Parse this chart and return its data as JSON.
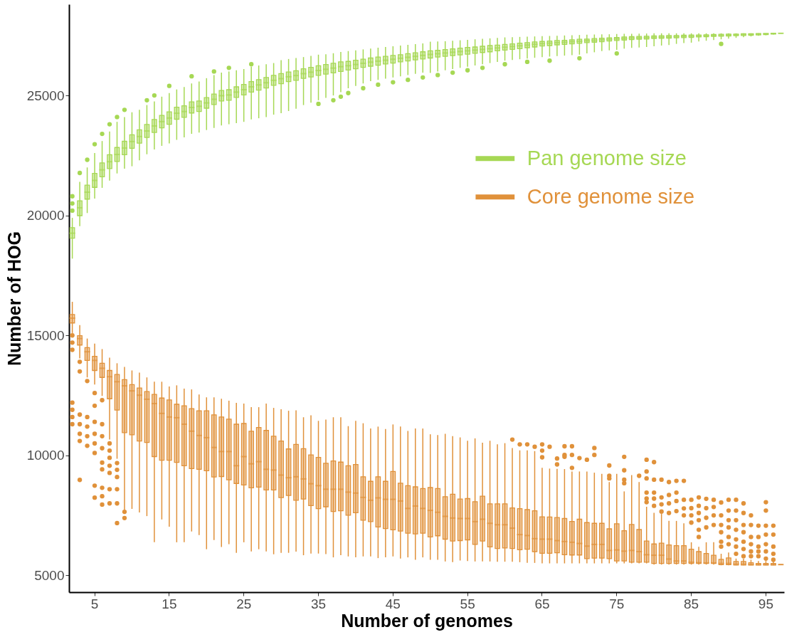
{
  "chart_data": {
    "type": "box",
    "xlabel": "Number of genomes",
    "ylabel": "Number of HOG",
    "ylim": [
      4300,
      28800
    ],
    "yticks": [
      5000,
      10000,
      15000,
      20000,
      25000
    ],
    "legend": "top right",
    "categories": [
      null,
      null,
      null,
      "5",
      null,
      null,
      null,
      null,
      null,
      null,
      null,
      null,
      null,
      "15",
      null,
      null,
      null,
      null,
      null,
      null,
      null,
      null,
      null,
      "25",
      null,
      null,
      null,
      null,
      null,
      null,
      null,
      null,
      null,
      "35",
      null,
      null,
      null,
      null,
      null,
      null,
      null,
      null,
      null,
      "45",
      null,
      null,
      null,
      null,
      null,
      null,
      null,
      null,
      null,
      "55",
      null,
      null,
      null,
      null,
      null,
      null,
      null,
      null,
      null,
      "65",
      null,
      null,
      null,
      null,
      null,
      null,
      null,
      null,
      null,
      "75",
      null,
      null,
      null,
      null,
      null,
      null,
      null,
      null,
      null,
      "85",
      null,
      null,
      null,
      null,
      null,
      null,
      null,
      null,
      null,
      "95",
      null,
      null
    ],
    "series": [
      {
        "name": "Pan genome size",
        "color": "#a6d854",
        "boxes": [
          {
            "low": 18200,
            "q1": 19050,
            "median": 19260,
            "q3": 19490,
            "high": 19900,
            "outliers": [
              20200,
              20500,
              20800
            ]
          },
          {
            "low": 19550,
            "q1": 19990,
            "median": 20320,
            "q3": 20610,
            "high": 21400,
            "outliers": [
              21770
            ]
          },
          {
            "low": 20100,
            "q1": 20680,
            "median": 20970,
            "q3": 21260,
            "high": 22000,
            "outliers": [
              22320
            ]
          },
          {
            "low": 20700,
            "q1": 21170,
            "median": 21460,
            "q3": 21750,
            "high": 22600,
            "outliers": [
              22970
            ]
          },
          {
            "low": 21150,
            "q1": 21610,
            "median": 21900,
            "q3": 22190,
            "high": 23100,
            "outliers": [
              23400
            ]
          },
          {
            "low": 21450,
            "q1": 21950,
            "median": 22240,
            "q3": 22530,
            "high": 23500,
            "outliers": [
              23800
            ]
          },
          {
            "low": 21750,
            "q1": 22250,
            "median": 22540,
            "q3": 22830,
            "high": 23900,
            "outliers": [
              24100
            ]
          },
          {
            "low": 21950,
            "q1": 22530,
            "median": 22810,
            "q3": 23090,
            "high": 24100,
            "outliers": [
              24400
            ]
          },
          {
            "low": 22050,
            "q1": 22800,
            "median": 23080,
            "q3": 23360,
            "high": 24300
          },
          {
            "low": 22300,
            "q1": 23010,
            "median": 23290,
            "q3": 23570,
            "high": 24400
          },
          {
            "low": 22550,
            "q1": 23250,
            "median": 23520,
            "q3": 23790,
            "high": 24600,
            "outliers": [
              24800
            ]
          },
          {
            "low": 22750,
            "q1": 23460,
            "median": 23730,
            "q3": 24000,
            "high": 24750,
            "outliers": [
              25000
            ]
          },
          {
            "low": 22900,
            "q1": 23650,
            "median": 23910,
            "q3": 24170,
            "high": 24950
          },
          {
            "low": 23000,
            "q1": 23800,
            "median": 24060,
            "q3": 24320,
            "high": 25100,
            "outliers": [
              25400
            ]
          },
          {
            "low": 23150,
            "q1": 24010,
            "median": 24260,
            "q3": 24510,
            "high": 25250
          },
          {
            "low": 23250,
            "q1": 24090,
            "median": 24330,
            "q3": 24570,
            "high": 25350
          },
          {
            "low": 23400,
            "q1": 24270,
            "median": 24500,
            "q3": 24730,
            "high": 25500,
            "outliers": [
              25800
            ]
          },
          {
            "low": 23450,
            "q1": 24330,
            "median": 24550,
            "q3": 24770,
            "high": 25580
          },
          {
            "low": 23560,
            "q1": 24470,
            "median": 24690,
            "q3": 24910,
            "high": 25720
          },
          {
            "low": 23650,
            "q1": 24620,
            "median": 24840,
            "q3": 25060,
            "high": 25850,
            "outliers": [
              26000
            ]
          },
          {
            "low": 23750,
            "q1": 24770,
            "median": 24990,
            "q3": 25210,
            "high": 25950
          },
          {
            "low": 23800,
            "q1": 24800,
            "median": 25020,
            "q3": 25240,
            "high": 26000,
            "outliers": [
              26150
            ]
          },
          {
            "low": 23850,
            "q1": 24920,
            "median": 25140,
            "q3": 25360,
            "high": 26050
          },
          {
            "low": 23900,
            "q1": 25020,
            "median": 25240,
            "q3": 25460,
            "high": 26100
          },
          {
            "low": 24000,
            "q1": 25140,
            "median": 25360,
            "q3": 25580,
            "high": 26200,
            "outliers": [
              26300
            ]
          },
          {
            "low": 24050,
            "q1": 25220,
            "median": 25440,
            "q3": 25660,
            "high": 26250
          },
          {
            "low": 24100,
            "q1": 25310,
            "median": 25530,
            "q3": 25750,
            "high": 26300
          },
          {
            "low": 24200,
            "q1": 25420,
            "median": 25630,
            "q3": 25840,
            "high": 26350
          },
          {
            "low": 24260,
            "q1": 25490,
            "median": 25700,
            "q3": 25910,
            "high": 26470
          },
          {
            "low": 24350,
            "q1": 25580,
            "median": 25780,
            "q3": 25980,
            "high": 26520
          },
          {
            "low": 24450,
            "q1": 25630,
            "median": 25830,
            "q3": 26030,
            "high": 26560
          },
          {
            "low": 24600,
            "q1": 25710,
            "median": 25910,
            "q3": 26110,
            "high": 26600
          },
          {
            "low": 24700,
            "q1": 25770,
            "median": 25970,
            "q3": 26170,
            "high": 26650
          },
          {
            "low": 24800,
            "q1": 25840,
            "median": 26040,
            "q3": 26240,
            "high": 26700,
            "outliers": [
              24650
            ]
          },
          {
            "low": 24900,
            "q1": 25890,
            "median": 26090,
            "q3": 26290,
            "high": 26720
          },
          {
            "low": 25000,
            "q1": 25940,
            "median": 26140,
            "q3": 26340,
            "high": 26760,
            "outliers": [
              24800
            ]
          },
          {
            "low": 25140,
            "q1": 26000,
            "median": 26200,
            "q3": 26400,
            "high": 26810,
            "outliers": [
              24950
            ]
          },
          {
            "low": 25300,
            "q1": 26060,
            "median": 26240,
            "q3": 26420,
            "high": 26850,
            "outliers": [
              25100
            ]
          },
          {
            "low": 25400,
            "q1": 26110,
            "median": 26290,
            "q3": 26470,
            "high": 26880
          },
          {
            "low": 25500,
            "q1": 26170,
            "median": 26340,
            "q3": 26510,
            "high": 26920,
            "outliers": [
              25300
            ]
          },
          {
            "low": 25600,
            "q1": 26220,
            "median": 26390,
            "q3": 26560,
            "high": 26950
          },
          {
            "low": 25650,
            "q1": 26260,
            "median": 26430,
            "q3": 26600,
            "high": 26990,
            "outliers": [
              25450
            ]
          },
          {
            "low": 25700,
            "q1": 26310,
            "median": 26470,
            "q3": 26630,
            "high": 27020
          },
          {
            "low": 25750,
            "q1": 26350,
            "median": 26510,
            "q3": 26670,
            "high": 27050,
            "outliers": [
              25550
            ]
          },
          {
            "low": 25800,
            "q1": 26400,
            "median": 26550,
            "q3": 26700,
            "high": 27080
          },
          {
            "low": 25850,
            "q1": 26440,
            "median": 26590,
            "q3": 26740,
            "high": 27110,
            "outliers": [
              25650
            ]
          },
          {
            "low": 25900,
            "q1": 26480,
            "median": 26630,
            "q3": 26780,
            "high": 27140
          },
          {
            "low": 25950,
            "q1": 26520,
            "median": 26670,
            "q3": 26820,
            "high": 27170,
            "outliers": [
              25750
            ]
          },
          {
            "low": 25940,
            "q1": 26560,
            "median": 26710,
            "q3": 26860,
            "high": 27240
          },
          {
            "low": 26000,
            "q1": 26600,
            "median": 26740,
            "q3": 26880,
            "high": 27250,
            "outliers": [
              25850
            ]
          },
          {
            "low": 26050,
            "q1": 26630,
            "median": 26770,
            "q3": 26910,
            "high": 27260
          },
          {
            "low": 26100,
            "q1": 26660,
            "median": 26800,
            "q3": 26940,
            "high": 27280,
            "outliers": [
              25950
            ]
          },
          {
            "low": 26150,
            "q1": 26690,
            "median": 26830,
            "q3": 26970,
            "high": 27300
          },
          {
            "low": 26200,
            "q1": 26720,
            "median": 26860,
            "q3": 27000,
            "high": 27320,
            "outliers": [
              26050
            ]
          },
          {
            "low": 26250,
            "q1": 26760,
            "median": 26890,
            "q3": 27020,
            "high": 27340
          },
          {
            "low": 26300,
            "q1": 26790,
            "median": 26920,
            "q3": 27050,
            "high": 27360,
            "outliers": [
              26150
            ]
          },
          {
            "low": 26350,
            "q1": 26820,
            "median": 26950,
            "q3": 27080,
            "high": 27380
          },
          {
            "low": 26400,
            "q1": 26860,
            "median": 26980,
            "q3": 27100,
            "high": 27400
          },
          {
            "low": 26450,
            "q1": 26890,
            "median": 27010,
            "q3": 27130,
            "high": 27420,
            "outliers": [
              26300
            ]
          },
          {
            "low": 26480,
            "q1": 26920,
            "median": 27040,
            "q3": 27150,
            "high": 27430
          },
          {
            "low": 26510,
            "q1": 26950,
            "median": 27070,
            "q3": 27180,
            "high": 27440
          },
          {
            "low": 26540,
            "q1": 26990,
            "median": 27100,
            "q3": 27200,
            "high": 27450,
            "outliers": [
              26400
            ]
          },
          {
            "low": 26570,
            "q1": 27020,
            "median": 27130,
            "q3": 27230,
            "high": 27460
          },
          {
            "low": 26600,
            "q1": 27060,
            "median": 27160,
            "q3": 27250,
            "high": 27470
          },
          {
            "low": 26620,
            "q1": 27080,
            "median": 27180,
            "q3": 27270,
            "high": 27480,
            "outliers": [
              26450
            ]
          },
          {
            "low": 26640,
            "q1": 27110,
            "median": 27200,
            "q3": 27290,
            "high": 27490
          },
          {
            "low": 26660,
            "q1": 27130,
            "median": 27220,
            "q3": 27300,
            "high": 27500
          },
          {
            "low": 26680,
            "q1": 27150,
            "median": 27240,
            "q3": 27320,
            "high": 27510
          },
          {
            "low": 26700,
            "q1": 27170,
            "median": 27260,
            "q3": 27340,
            "high": 27520,
            "outliers": [
              26550
            ]
          },
          {
            "low": 26750,
            "q1": 27200,
            "median": 27280,
            "q3": 27350,
            "high": 27530
          },
          {
            "low": 26800,
            "q1": 27220,
            "median": 27300,
            "q3": 27370,
            "high": 27540
          },
          {
            "low": 26850,
            "q1": 27240,
            "median": 27320,
            "q3": 27390,
            "high": 27550
          },
          {
            "low": 26880,
            "q1": 27270,
            "median": 27340,
            "q3": 27400,
            "high": 27550
          },
          {
            "low": 26900,
            "q1": 27290,
            "median": 27360,
            "q3": 27420,
            "high": 27560,
            "outliers": [
              26750
            ]
          },
          {
            "low": 26950,
            "q1": 27310,
            "median": 27380,
            "q3": 27440,
            "high": 27570
          },
          {
            "low": 26980,
            "q1": 27330,
            "median": 27390,
            "q3": 27450,
            "high": 27570
          },
          {
            "low": 27000,
            "q1": 27340,
            "median": 27400,
            "q3": 27460,
            "high": 27580
          },
          {
            "low": 27020,
            "q1": 27350,
            "median": 27410,
            "q3": 27470,
            "high": 27580
          },
          {
            "low": 27050,
            "q1": 27370,
            "median": 27420,
            "q3": 27480,
            "high": 27590
          },
          {
            "low": 27080,
            "q1": 27380,
            "median": 27430,
            "q3": 27490,
            "high": 27590
          },
          {
            "low": 27100,
            "q1": 27390,
            "median": 27440,
            "q3": 27500,
            "high": 27590
          },
          {
            "low": 27150,
            "q1": 27400,
            "median": 27450,
            "q3": 27500,
            "high": 27590
          },
          {
            "low": 27180,
            "q1": 27410,
            "median": 27460,
            "q3": 27510,
            "high": 27590
          },
          {
            "low": 27200,
            "q1": 27420,
            "median": 27470,
            "q3": 27520,
            "high": 27590
          },
          {
            "low": 27250,
            "q1": 27440,
            "median": 27480,
            "q3": 27520,
            "high": 27590
          },
          {
            "low": 27280,
            "q1": 27450,
            "median": 27490,
            "q3": 27530,
            "high": 27590
          },
          {
            "low": 27310,
            "q1": 27460,
            "median": 27500,
            "q3": 27540,
            "high": 27590
          },
          {
            "low": 27340,
            "q1": 27470,
            "median": 27510,
            "q3": 27550,
            "high": 27590,
            "outliers": [
              27150
            ]
          },
          {
            "low": 27370,
            "q1": 27480,
            "median": 27520,
            "q3": 27560,
            "high": 27590
          },
          {
            "low": 27400,
            "q1": 27490,
            "median": 27530,
            "q3": 27560,
            "high": 27590
          },
          {
            "low": 27430,
            "q1": 27500,
            "median": 27540,
            "q3": 27570,
            "high": 27590
          },
          {
            "low": 27460,
            "q1": 27510,
            "median": 27550,
            "q3": 27570,
            "high": 27590
          },
          {
            "low": 27490,
            "q1": 27520,
            "median": 27560,
            "q3": 27580,
            "high": 27590
          },
          {
            "low": 27510,
            "q1": 27540,
            "median": 27570,
            "q3": 27580,
            "high": 27590
          },
          {
            "low": 27540,
            "q1": 27560,
            "median": 27580,
            "q3": 27590,
            "high": 27590
          },
          {
            "low": 27590,
            "q1": 27590,
            "median": 27590,
            "q3": 27590,
            "high": 27590
          }
        ]
      },
      {
        "name": "Core genome size",
        "color": "#e0913a",
        "boxes": [
          {
            "low": 15100,
            "q1": 15520,
            "median": 15720,
            "q3": 15870,
            "high": 16400,
            "outliers": [
              15000,
              14700,
              14400,
              12200,
              11900,
              11600,
              11300
            ]
          },
          {
            "low": 14040,
            "q1": 14600,
            "median": 14870,
            "q3": 14990,
            "high": 15430,
            "outliers": [
              13900,
              13500,
              11700,
              11300,
              10900,
              10600,
              8980
            ]
          },
          {
            "low": 13250,
            "q1": 13960,
            "median": 14320,
            "q3": 14490,
            "high": 14870,
            "outliers": [
              13100,
              11600,
              11200,
              10800,
              10400
            ]
          },
          {
            "low": 12950,
            "q1": 13540,
            "median": 13960,
            "q3": 14130,
            "high": 14660,
            "outliers": [
              12600,
              12070,
              11400,
              10900,
              10500,
              10100,
              8740,
              8240
            ]
          },
          {
            "low": 12480,
            "q1": 13250,
            "median": 13630,
            "q3": 13840,
            "high": 14430,
            "outliers": [
              12300,
              11300,
              10800,
              10300,
              9700,
              9420,
              8650,
              8300,
              7950
            ]
          },
          {
            "low": 10660,
            "q1": 12360,
            "median": 13280,
            "q3": 13540,
            "high": 14070,
            "outliers": [
              10500,
              10200,
              9900,
              9570,
              9270,
              8590,
              8000
            ]
          },
          {
            "low": 9860,
            "q1": 11890,
            "median": 13070,
            "q3": 13370,
            "high": 13840,
            "outliers": [
              9680,
              9400,
              9100,
              8590,
              8000,
              7180
            ]
          },
          {
            "low": 7710,
            "q1": 10950,
            "median": 12900,
            "q3": 13160,
            "high": 13690,
            "outliers": [
              7650,
              7390
            ]
          },
          {
            "low": 7770,
            "q1": 10860,
            "median": 12690,
            "q3": 12950,
            "high": 13540
          },
          {
            "low": 7620,
            "q1": 10600,
            "median": 12510,
            "q3": 12810,
            "high": 13450
          },
          {
            "low": 7470,
            "q1": 10540,
            "median": 12340,
            "q3": 12660,
            "high": 13250
          },
          {
            "low": 6380,
            "q1": 9950,
            "median": 12160,
            "q3": 12540,
            "high": 13070
          },
          {
            "low": 7330,
            "q1": 9800,
            "median": 11750,
            "q3": 12390,
            "high": 13070
          },
          {
            "low": 7030,
            "q1": 9800,
            "median": 11600,
            "q3": 12310,
            "high": 12870
          },
          {
            "low": 6380,
            "q1": 9710,
            "median": 11570,
            "q3": 12130,
            "high": 12920
          },
          {
            "low": 6380,
            "q1": 9570,
            "median": 11300,
            "q3": 12070,
            "high": 12780
          },
          {
            "low": 6830,
            "q1": 9450,
            "median": 11010,
            "q3": 11950,
            "high": 12750
          },
          {
            "low": 6680,
            "q1": 9420,
            "median": 10830,
            "q3": 11860,
            "high": 12540
          },
          {
            "low": 6090,
            "q1": 9360,
            "median": 10740,
            "q3": 11860,
            "high": 12420
          },
          {
            "low": 6470,
            "q1": 9100,
            "median": 10330,
            "q3": 11690,
            "high": 12420
          },
          {
            "low": 6180,
            "q1": 9120,
            "median": 10160,
            "q3": 11600,
            "high": 12360
          },
          {
            "low": 6300,
            "q1": 8980,
            "median": 10160,
            "q3": 11510,
            "high": 12280
          },
          {
            "low": 5940,
            "q1": 8830,
            "median": 9570,
            "q3": 11300,
            "high": 12190
          },
          {
            "low": 6380,
            "q1": 8770,
            "median": 9950,
            "q3": 11330,
            "high": 12160
          },
          {
            "low": 6000,
            "q1": 8650,
            "median": 9650,
            "q3": 11010,
            "high": 12010
          },
          {
            "low": 6090,
            "q1": 8680,
            "median": 9740,
            "q3": 11160,
            "high": 12010
          },
          {
            "low": 6000,
            "q1": 8560,
            "median": 9420,
            "q3": 11040,
            "high": 12160
          },
          {
            "low": 5880,
            "q1": 8560,
            "median": 9390,
            "q3": 10800,
            "high": 11980
          },
          {
            "low": 5940,
            "q1": 8240,
            "median": 9180,
            "q3": 10600,
            "high": 11920
          },
          {
            "low": 5940,
            "q1": 8330,
            "median": 9070,
            "q3": 10270,
            "high": 11860
          },
          {
            "low": 5990,
            "q1": 8130,
            "median": 9110,
            "q3": 10460,
            "high": 11880
          },
          {
            "low": 5840,
            "q1": 8180,
            "median": 9020,
            "q3": 10280,
            "high": 11590
          },
          {
            "low": 5910,
            "q1": 7910,
            "median": 8820,
            "q3": 10020,
            "high": 11670
          },
          {
            "low": 5910,
            "q1": 7780,
            "median": 8740,
            "q3": 9920,
            "high": 11440
          },
          {
            "low": 5890,
            "q1": 7860,
            "median": 8590,
            "q3": 9670,
            "high": 11490
          },
          {
            "low": 5750,
            "q1": 7660,
            "median": 8590,
            "q3": 9770,
            "high": 11590
          },
          {
            "low": 5840,
            "q1": 7690,
            "median": 8590,
            "q3": 9720,
            "high": 11590
          },
          {
            "low": 5790,
            "q1": 7510,
            "median": 8470,
            "q3": 9570,
            "high": 11220
          },
          {
            "low": 5750,
            "q1": 7610,
            "median": 8430,
            "q3": 9620,
            "high": 11440
          },
          {
            "low": 5790,
            "q1": 7300,
            "median": 8250,
            "q3": 9110,
            "high": 11340
          },
          {
            "low": 5790,
            "q1": 7240,
            "median": 8130,
            "q3": 8920,
            "high": 11120
          },
          {
            "low": 5720,
            "q1": 7020,
            "median": 8230,
            "q3": 9110,
            "high": 11200
          },
          {
            "low": 5750,
            "q1": 6950,
            "median": 8170,
            "q3": 8920,
            "high": 11100
          },
          {
            "low": 5790,
            "q1": 6900,
            "median": 8170,
            "q3": 9330,
            "high": 11290
          },
          {
            "low": 5700,
            "q1": 6850,
            "median": 8100,
            "q3": 8840,
            "high": 11200
          },
          {
            "low": 5750,
            "q1": 6760,
            "median": 7790,
            "q3": 8740,
            "high": 11020
          },
          {
            "low": 5650,
            "q1": 6730,
            "median": 7890,
            "q3": 8690,
            "high": 11120
          },
          {
            "low": 5750,
            "q1": 6760,
            "median": 7790,
            "q3": 8620,
            "high": 11120
          },
          {
            "low": 5650,
            "q1": 6600,
            "median": 7710,
            "q3": 8660,
            "high": 10880
          },
          {
            "low": 5650,
            "q1": 6650,
            "median": 7630,
            "q3": 8620,
            "high": 10850
          },
          {
            "low": 5580,
            "q1": 6510,
            "median": 7460,
            "q3": 8280,
            "high": 10900
          },
          {
            "low": 5550,
            "q1": 6430,
            "median": 7390,
            "q3": 8380,
            "high": 10800
          },
          {
            "low": 5620,
            "q1": 6450,
            "median": 7370,
            "q3": 8180,
            "high": 10750
          },
          {
            "low": 5600,
            "q1": 6480,
            "median": 7370,
            "q3": 8200,
            "high": 10610
          },
          {
            "low": 5580,
            "q1": 6290,
            "median": 7240,
            "q3": 8070,
            "high": 10710
          },
          {
            "low": 5580,
            "q1": 6430,
            "median": 7340,
            "q3": 8300,
            "high": 10530
          },
          {
            "low": 5580,
            "q1": 6190,
            "median": 7170,
            "q3": 7980,
            "high": 10610
          },
          {
            "low": 5570,
            "q1": 6120,
            "median": 7110,
            "q3": 7980,
            "high": 10460
          },
          {
            "low": 5570,
            "q1": 6140,
            "median": 7110,
            "q3": 7980,
            "high": 10510
          },
          {
            "low": 5570,
            "q1": 6120,
            "median": 6970,
            "q3": 7810,
            "high": 10310,
            "outliers": [
              10660
            ]
          },
          {
            "low": 5550,
            "q1": 6070,
            "median": 6700,
            "q3": 7780,
            "high": 10210,
            "outliers": [
              10460
            ]
          },
          {
            "low": 5520,
            "q1": 6090,
            "median": 6660,
            "q3": 7740,
            "high": 10210,
            "outliers": [
              10460
            ]
          },
          {
            "low": 5520,
            "q1": 5990,
            "median": 6530,
            "q3": 7690,
            "high": 10180,
            "outliers": [
              10360
            ]
          },
          {
            "low": 5500,
            "q1": 5920,
            "median": 6510,
            "q3": 7440,
            "high": 9480,
            "outliers": [
              10460,
              10200,
              9920
            ]
          },
          {
            "low": 5500,
            "q1": 5920,
            "median": 6510,
            "q3": 7435,
            "high": 9450,
            "outliers": [
              10360
            ]
          },
          {
            "low": 5500,
            "q1": 5940,
            "median": 6450,
            "q3": 7410,
            "high": 9440,
            "outliers": [
              9870,
              9625
            ]
          },
          {
            "low": 5500,
            "q1": 5860,
            "median": 6410,
            "q3": 7370,
            "high": 9430,
            "outliers": [
              10380,
              10020,
              9940
            ]
          },
          {
            "low": 5500,
            "q1": 5850,
            "median": 6380,
            "q3": 7250,
            "high": 9330,
            "outliers": [
              10380,
              10020,
              9480
            ]
          },
          {
            "low": 5500,
            "q1": 5850,
            "median": 6330,
            "q3": 7340,
            "high": 9330,
            "outliers": [
              9890
            ]
          },
          {
            "low": 5500,
            "q1": 5700,
            "median": 6220,
            "q3": 7200,
            "high": 9330,
            "outliers": [
              9820
            ]
          },
          {
            "low": 5500,
            "q1": 5720,
            "median": 6290,
            "q3": 7170,
            "high": 9280,
            "outliers": [
              10310,
              10020
            ]
          },
          {
            "low": 5500,
            "q1": 5720,
            "median": 6290,
            "q3": 7170,
            "high": 9230
          },
          {
            "low": 5500,
            "q1": 5700,
            "median": 6040,
            "q3": 6940,
            "high": 8890,
            "outliers": [
              9580,
              9150,
              9040
            ]
          },
          {
            "low": 5500,
            "q1": 5600,
            "median": 6060,
            "q3": 7150,
            "high": 9230
          },
          {
            "low": 5500,
            "q1": 5600,
            "median": 6010,
            "q3": 6860,
            "high": 8500,
            "outliers": [
              9940,
              9380,
              8990,
              8840
            ]
          },
          {
            "low": 5500,
            "q1": 5550,
            "median": 6040,
            "q3": 7120,
            "high": 9180
          },
          {
            "low": 5500,
            "q1": 5550,
            "median": 5990,
            "q3": 6910,
            "high": 8890,
            "outliers": [
              9150
            ]
          },
          {
            "low": 5500,
            "q1": 5550,
            "median": 5860,
            "q3": 6430,
            "high": 7860,
            "outliers": [
              9820,
              9330,
              9040,
              8450,
              8200,
              8050
            ]
          },
          {
            "low": 5450,
            "q1": 5500,
            "median": 5840,
            "q3": 6310,
            "high": 7610,
            "outliers": [
              9720,
              8990,
              8450,
              8200,
              7900
            ]
          },
          {
            "low": 5450,
            "q1": 5500,
            "median": 5840,
            "q3": 6340,
            "high": 7560,
            "outliers": [
              8990,
              8250,
              7960,
              7660
            ]
          },
          {
            "low": 5450,
            "q1": 5500,
            "median": 5680,
            "q3": 6270,
            "high": 7270,
            "outliers": [
              8890,
              8350,
              8000,
              7600
            ]
          },
          {
            "low": 5450,
            "q1": 5500,
            "median": 5600,
            "q3": 6240,
            "high": 7270,
            "outliers": [
              8940,
              8450,
              8100,
              7680
            ]
          },
          {
            "low": 5450,
            "q1": 5500,
            "median": 5600,
            "q3": 6240,
            "high": 7170,
            "outliers": [
              8940,
              8150,
              7790,
              7500
            ]
          },
          {
            "low": 5450,
            "q1": 5500,
            "median": 5550,
            "q3": 6090,
            "high": 6380,
            "outliers": [
              8150,
              7800,
              7500,
              7200
            ]
          },
          {
            "low": 5450,
            "q1": 5500,
            "median": 5530,
            "q3": 5990,
            "high": 6190,
            "outliers": [
              8250,
              7900,
              7600,
              7300,
              6900,
              6600
            ]
          },
          {
            "low": 5450,
            "q1": 5500,
            "median": 5520,
            "q3": 5910,
            "high": 6380,
            "outliers": [
              8190,
              7800,
              7400,
              7000
            ]
          },
          {
            "low": 5450,
            "q1": 5500,
            "median": 5520,
            "q3": 5840,
            "high": 6380,
            "outliers": [
              8150,
              7850,
              7500,
              7100
            ]
          },
          {
            "low": 5420,
            "q1": 5450,
            "median": 5500,
            "q3": 5670,
            "high": 5900,
            "outliers": [
              8040,
              7500,
              7100,
              6800,
              6400,
              6200
            ]
          },
          {
            "low": 5420,
            "q1": 5450,
            "median": 5500,
            "q3": 5730,
            "high": 5950,
            "outliers": [
              8150,
              7700,
              7300,
              7000,
              6600,
              6300
            ]
          },
          {
            "low": 5420,
            "q1": 5430,
            "median": 5470,
            "q3": 5580,
            "high": 5700,
            "outliers": [
              8150,
              7700,
              7300,
              6900,
              6500,
              6200,
              5900
            ]
          },
          {
            "low": 5420,
            "q1": 5430,
            "median": 5470,
            "q3": 5580,
            "high": 5700,
            "outliers": [
              8000,
              7600,
              7100,
              6800,
              6400,
              6100,
              5800
            ]
          },
          {
            "low": 5420,
            "q1": 5430,
            "median": 5450,
            "q3": 5530,
            "high": 5650,
            "outliers": [
              7500,
              7100,
              6600,
              6300,
              6000,
              5800
            ]
          },
          {
            "low": 5420,
            "q1": 5430,
            "median": 5450,
            "q3": 5500,
            "high": 5600,
            "outliers": [
              7070,
              6600,
              6200,
              6000,
              5800
            ]
          },
          {
            "low": 5420,
            "q1": 5430,
            "median": 5450,
            "q3": 5500,
            "high": 5600,
            "outliers": [
              8050,
              7700,
              7070,
              6700,
              6300,
              6000,
              5700
            ]
          },
          {
            "low": 5420,
            "q1": 5430,
            "median": 5450,
            "q3": 5500,
            "high": 5600,
            "outliers": [
              7070,
              6700,
              6200,
              5900,
              5650
            ]
          },
          {
            "low": 5450,
            "q1": 5450,
            "median": 5450,
            "q3": 5450,
            "high": 5450
          }
        ]
      }
    ]
  }
}
